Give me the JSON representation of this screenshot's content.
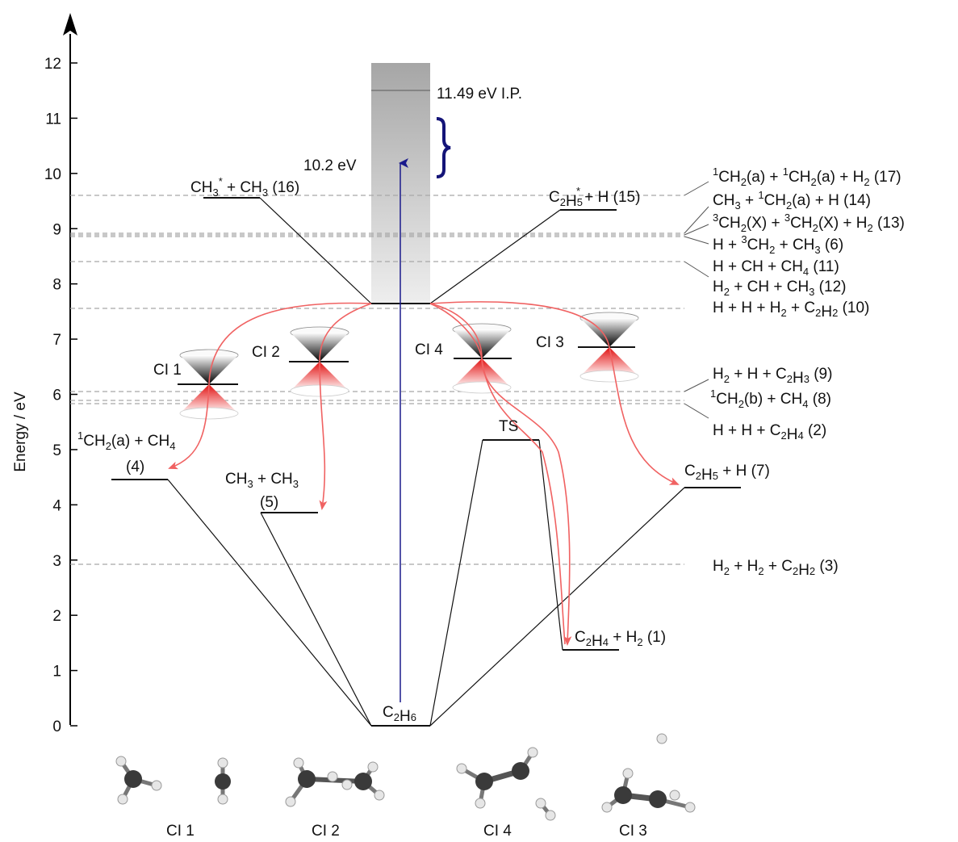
{
  "y_axis": {
    "title": "Energy / eV",
    "range": [
      0,
      12
    ],
    "ticks": [
      "0",
      "1",
      "2",
      "3",
      "4",
      "5",
      "6",
      "7",
      "8",
      "9",
      "10",
      "11",
      "12"
    ]
  },
  "ionization_label": "11.49 eV I.P.",
  "ionization_energy": 11.49,
  "excitation": {
    "label": "10.2 eV",
    "energy": 10.2
  },
  "origin_label": "C2H6",
  "ts_label": "TS",
  "ci_labels": {
    "ci1": "CI 1",
    "ci2": "CI 2",
    "ci3": "CI 3",
    "ci4": "CI 4"
  },
  "product_levels": [
    {
      "key": "p16",
      "label": "CH3* + CH3 (16)",
      "energy": 9.55
    },
    {
      "key": "p15",
      "label": "C2H5* + H (15)",
      "energy": 9.33
    },
    {
      "key": "p4",
      "label_line1": "1CH2(a) + CH4",
      "label_line2": "(4)",
      "energy": 4.46
    },
    {
      "key": "p5",
      "label_line1": "CH3 + CH3",
      "label_line2": "(5)",
      "energy": 3.84
    },
    {
      "key": "p7",
      "label": "C2H5 + H (7)",
      "energy": 4.3
    },
    {
      "key": "p1",
      "label": "C2H4 + H2 (1)",
      "energy": 1.33
    },
    {
      "key": "ts",
      "label": "TS",
      "energy": 5.16
    }
  ],
  "threshold_labels": [
    {
      "key": "t17",
      "text": "1CH2(a) + 1CH2(a) + H2 (17)",
      "energy": 9.6
    },
    {
      "key": "t14",
      "text": "CH3 + 1CH2(a) + H (14)",
      "energy": 8.9
    },
    {
      "key": "t13",
      "text": "3CH2(X) + 3CH2(X) + H2 (13)",
      "energy": 8.87
    },
    {
      "key": "t6",
      "text": "H + 3CH2 + CH3 (6)",
      "energy": 8.85
    },
    {
      "key": "t11",
      "text": "H + CH + CH4 (11)",
      "energy": 8.42
    },
    {
      "key": "t12",
      "text": "H2 + CH + CH3 (12)",
      "energy": 8.42
    },
    {
      "key": "t10",
      "text": "H + H + H2 + C2H2 (10)",
      "energy": 7.57
    },
    {
      "key": "t9",
      "text": "H2 + H + C2H3 (9)",
      "energy": 6.05
    },
    {
      "key": "t8",
      "text": "1CH2(b) + CH4 (8)",
      "energy": 5.85
    },
    {
      "key": "t2",
      "text": "H + H + C2H4 (2)",
      "energy": 5.78
    },
    {
      "key": "t3",
      "text": "H2 + H2 + C2H2 (3)",
      "energy": 2.9
    }
  ],
  "molecule_labels": [
    "CI 1",
    "CI 2",
    "CI 4",
    "CI 3"
  ],
  "colors": {
    "level_line": "#111111",
    "threshold_dash": "#a8a8a8",
    "pathway_arrow": "#f06262",
    "excitation_arrow": "#1a1a8c",
    "brace": "#141478",
    "ionization_band_top": "#a6a6a6",
    "ionization_band_bottom": "#eeeeee"
  }
}
